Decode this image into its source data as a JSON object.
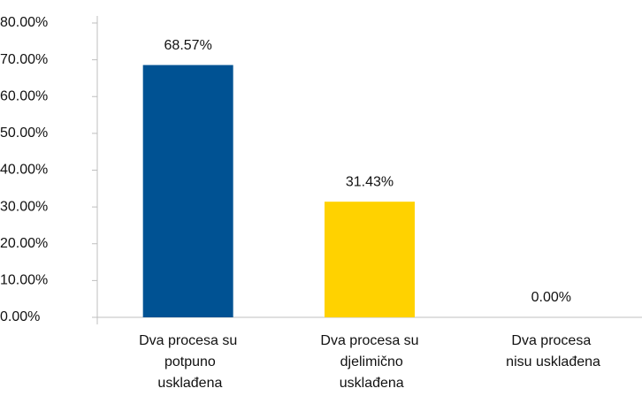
{
  "chart_data": {
    "type": "bar",
    "categories": [
      "Dva procesa su potpuno usklađena",
      "Dva procesa su djelimično usklađena",
      "Dva procesa nisu usklađena"
    ],
    "values": [
      68.57,
      31.43,
      0
    ],
    "value_labels": [
      "68.57%",
      "31.43%",
      "0.00%"
    ],
    "colors": [
      "#005293",
      "#ffd200",
      "#9e9e9e"
    ],
    "ylim": [
      0,
      80
    ],
    "yticks": [
      {
        "value": 0,
        "label": "0.00%"
      },
      {
        "value": 10,
        "label": "10.00%"
      },
      {
        "value": 20,
        "label": "20.00%"
      },
      {
        "value": 30,
        "label": "30.00%"
      },
      {
        "value": 40,
        "label": "40.00%"
      },
      {
        "value": 50,
        "label": "50.00%"
      },
      {
        "value": 60,
        "label": "60.00%"
      },
      {
        "value": 70,
        "label": "70.00%"
      },
      {
        "value": 80,
        "label": "80.00%"
      }
    ],
    "grid": false
  }
}
